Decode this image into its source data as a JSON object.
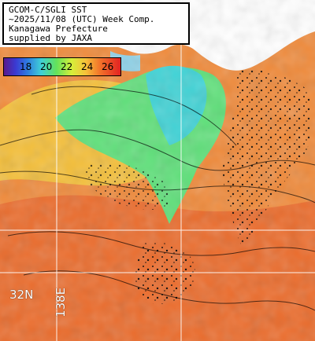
{
  "title": {
    "lines": [
      "GCOM-C/SGLI SST",
      "~2025/11/08 (UTC) Week Comp.",
      "Kanagawa Prefecture",
      "supplied by JAXA"
    ]
  },
  "legend": {
    "labels": [
      "18",
      "20",
      "22",
      "24",
      "26"
    ]
  },
  "grid_labels": {
    "latitude": "32N",
    "longitude": "138E"
  },
  "colors": {
    "land": "#ffffff",
    "cool": "#5fe07a",
    "warm": "#f08a3a",
    "hot": "#e23a1f",
    "cloud_mask": "#0a0a0a"
  }
}
